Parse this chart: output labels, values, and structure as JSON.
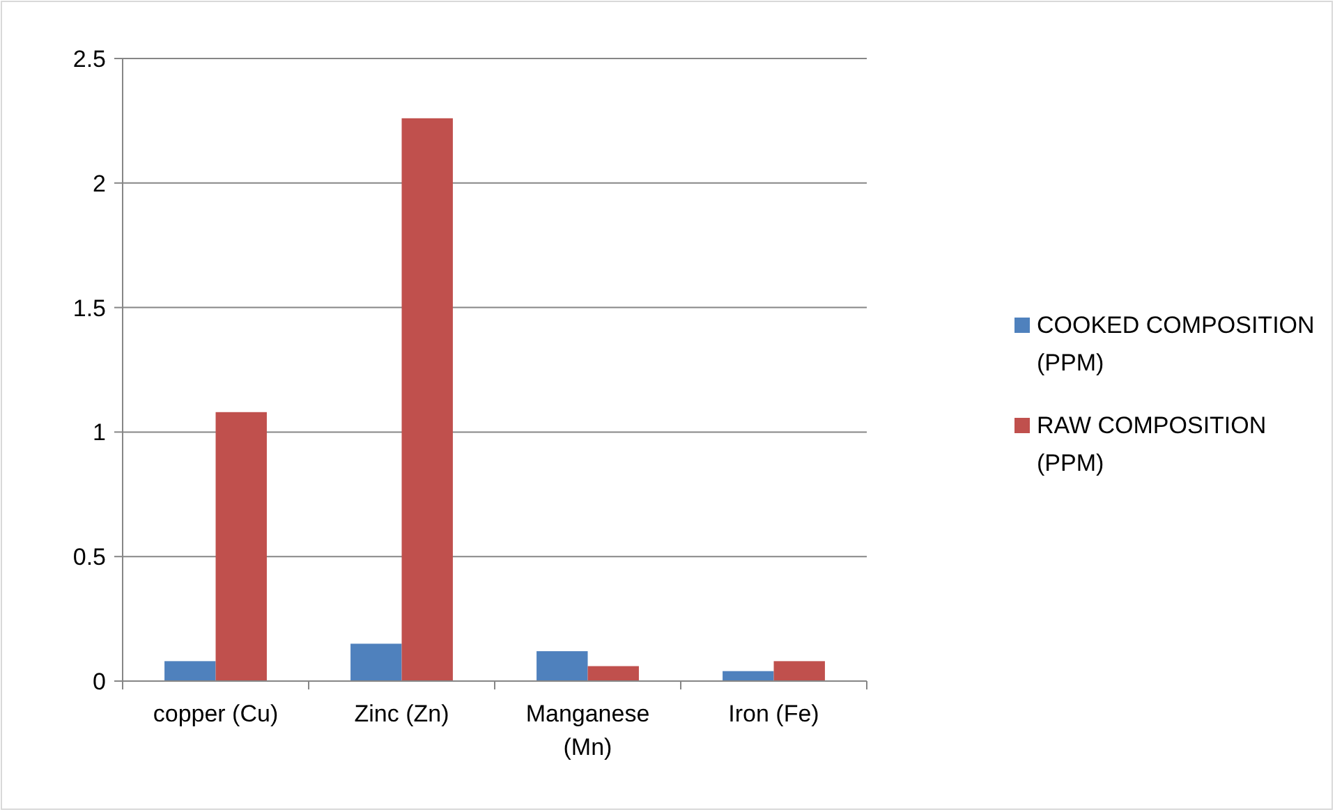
{
  "chart_data": {
    "type": "bar",
    "categories": [
      "copper (Cu)",
      "Zinc (Zn)",
      "Manganese (Mn)",
      "Iron (Fe)"
    ],
    "series": [
      {
        "name": "COOKED COMPOSITION (PPM)",
        "color": "#4f81bd",
        "values": [
          0.08,
          0.15,
          0.12,
          0.04
        ]
      },
      {
        "name": "RAW COMPOSITION (PPM)",
        "color": "#c0504d",
        "values": [
          1.08,
          2.26,
          0.06,
          0.08
        ]
      }
    ],
    "ylim": [
      0,
      2.5
    ],
    "yticks": [
      0,
      0.5,
      1,
      1.5,
      2,
      2.5
    ],
    "grid": "y",
    "legend": "right"
  }
}
